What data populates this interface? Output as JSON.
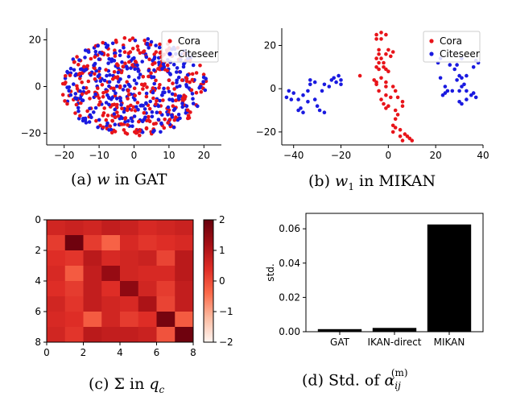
{
  "colors": {
    "cora": "#e8141a",
    "citeseer": "#1a1ae0",
    "bar": "#000000"
  },
  "captions": {
    "a": {
      "label": "(a)",
      "var": "w",
      "rest": "in GAT"
    },
    "b": {
      "label": "(b)",
      "var": "w",
      "sub": "1",
      "rest": "in MIKAN"
    },
    "c": {
      "label": "(c)",
      "var": "Σ",
      "mid": "in",
      "var2": "q",
      "sub": "c"
    },
    "d": {
      "label": "(d) Std. of",
      "var": "α",
      "sub": "ij",
      "sup": "(m)"
    }
  },
  "chart_data": [
    {
      "id": "a",
      "type": "scatter",
      "xlim": [
        -25,
        25
      ],
      "ylim": [
        -25,
        25
      ],
      "xticks": [
        "−20",
        "−10",
        "0",
        "10",
        "20"
      ],
      "xtick_vals": [
        -20,
        -10,
        0,
        10,
        20
      ],
      "yticks": [
        "−20",
        "0",
        "20"
      ],
      "ytick_vals": [
        -20,
        0,
        20
      ],
      "legend": {
        "position": "top-right",
        "entries": [
          "Cora",
          "Citeseer"
        ]
      },
      "series": [
        {
          "name": "Cora",
          "color": "#e8141a",
          "pattern": "cloud",
          "center": [
            0,
            0
          ],
          "spread": [
            21,
            21
          ],
          "n": 330,
          "seed": 7
        },
        {
          "name": "Citeseer",
          "color": "#1a1ae0",
          "pattern": "cloud",
          "center": [
            0,
            0
          ],
          "spread": [
            21,
            21
          ],
          "n": 330,
          "seed": 19
        }
      ]
    },
    {
      "id": "b",
      "type": "scatter",
      "xlim": [
        -45,
        40
      ],
      "ylim": [
        -26,
        28
      ],
      "xticks": [
        "−40",
        "−20",
        "0",
        "20",
        "40"
      ],
      "xtick_vals": [
        -40,
        -20,
        0,
        20,
        40
      ],
      "yticks": [
        "−20",
        "0",
        "20"
      ],
      "ytick_vals": [
        -20,
        0,
        20
      ],
      "legend": {
        "position": "top-right",
        "entries": [
          "Cora",
          "Citeseer"
        ]
      },
      "series": [
        {
          "name": "Cora",
          "color": "#e8141a",
          "points": [
            [
              -5,
              25
            ],
            [
              -3,
              26
            ],
            [
              -1,
              25
            ],
            [
              -5,
              23
            ],
            [
              -3,
              23
            ],
            [
              -4,
              18
            ],
            [
              -4,
              16
            ],
            [
              -5,
              14
            ],
            [
              -4,
              12
            ],
            [
              -5,
              10
            ],
            [
              -4,
              9
            ],
            [
              -3,
              14
            ],
            [
              -1,
              16
            ],
            [
              1,
              15
            ],
            [
              -2,
              10
            ],
            [
              -1,
              9
            ],
            [
              0,
              8
            ],
            [
              -3,
              5
            ],
            [
              -6,
              4
            ],
            [
              -5,
              3
            ],
            [
              -1,
              3
            ],
            [
              -5,
              2
            ],
            [
              -1,
              1
            ],
            [
              2,
              1
            ],
            [
              3,
              -1
            ],
            [
              4,
              -4
            ],
            [
              6,
              -6
            ],
            [
              6,
              -8
            ],
            [
              -2,
              -7
            ],
            [
              0,
              -8
            ],
            [
              -1,
              -9
            ],
            [
              3,
              -10
            ],
            [
              4,
              -12
            ],
            [
              3,
              -14
            ],
            [
              2,
              -17
            ],
            [
              3,
              -18
            ],
            [
              2,
              -20
            ],
            [
              5,
              -22
            ],
            [
              7,
              -21
            ],
            [
              9,
              -23
            ],
            [
              10,
              -24
            ],
            [
              6,
              -24
            ],
            [
              -3,
              -5
            ],
            [
              -1,
              -3
            ],
            [
              1,
              -4
            ],
            [
              5,
              -19
            ],
            [
              8,
              -22
            ],
            [
              -2,
              12
            ],
            [
              -12,
              6
            ],
            [
              0,
              18
            ],
            [
              2,
              17
            ],
            [
              -4,
              -1
            ]
          ]
        },
        {
          "name": "Citeseer",
          "color": "#1a1ae0",
          "points": [
            [
              -43,
              -4
            ],
            [
              -41,
              -5
            ],
            [
              -42,
              -1
            ],
            [
              -40,
              -2
            ],
            [
              -38,
              -5
            ],
            [
              -36,
              -3
            ],
            [
              -34,
              -1
            ],
            [
              -33,
              2
            ],
            [
              -33,
              4
            ],
            [
              -31,
              3
            ],
            [
              -37,
              -9
            ],
            [
              -36,
              -11
            ],
            [
              -38,
              -10
            ],
            [
              -30,
              -8
            ],
            [
              -29,
              -10
            ],
            [
              -27,
              -11
            ],
            [
              -28,
              -1
            ],
            [
              -25,
              1
            ],
            [
              -27,
              2
            ],
            [
              -22,
              3
            ],
            [
              -20,
              4
            ],
            [
              -21,
              6
            ],
            [
              -23,
              5
            ],
            [
              -24,
              4
            ],
            [
              -20,
              2
            ],
            [
              -34,
              -6
            ],
            [
              -31,
              -5
            ],
            [
              22,
              5
            ],
            [
              24,
              1
            ],
            [
              25,
              -1
            ],
            [
              23,
              -3
            ],
            [
              24,
              -2
            ],
            [
              27,
              -1
            ],
            [
              30,
              -1
            ],
            [
              31,
              1
            ],
            [
              32,
              2
            ],
            [
              29,
              4
            ],
            [
              31,
              5
            ],
            [
              33,
              6
            ],
            [
              30,
              6
            ],
            [
              33,
              -1
            ],
            [
              35,
              -3
            ],
            [
              37,
              -4
            ],
            [
              36,
              -2
            ],
            [
              36,
              10
            ],
            [
              38,
              12
            ],
            [
              37,
              13
            ],
            [
              30,
              -6
            ],
            [
              31,
              -7
            ],
            [
              21,
              12
            ],
            [
              22,
              14
            ],
            [
              26,
              11
            ],
            [
              28,
              9
            ],
            [
              29,
              11
            ],
            [
              31,
              14
            ],
            [
              33,
              -5
            ]
          ]
        }
      ]
    },
    {
      "id": "c",
      "type": "heatmap",
      "size": 8,
      "xticks": [
        "0",
        "2",
        "4",
        "6",
        "8"
      ],
      "yticks": [
        "0",
        "2",
        "4",
        "6",
        "8"
      ],
      "colorbar": {
        "min": -2,
        "max": 2,
        "ticks": [
          "2",
          "1",
          "0",
          "−1",
          "−2"
        ],
        "tick_vals": [
          2,
          1,
          0,
          -1,
          -2
        ]
      },
      "values": [
        [
          0.6,
          0.7,
          0.6,
          0.8,
          0.7,
          0.5,
          0.6,
          0.7
        ],
        [
          0.2,
          1.9,
          0.2,
          -0.3,
          0.5,
          0.3,
          0.4,
          0.5
        ],
        [
          0.4,
          0.3,
          0.9,
          0.5,
          0.6,
          0.7,
          0.1,
          0.9
        ],
        [
          0.5,
          -0.2,
          0.8,
          1.4,
          0.6,
          0.5,
          0.5,
          0.9
        ],
        [
          0.4,
          0.2,
          0.8,
          0.4,
          1.5,
          0.6,
          0.2,
          0.8
        ],
        [
          0.6,
          0.3,
          0.8,
          0.6,
          0.5,
          1.1,
          0.1,
          0.8
        ],
        [
          0.5,
          0.4,
          -0.2,
          0.6,
          0.2,
          0.4,
          1.8,
          -0.2
        ],
        [
          0.6,
          0.3,
          0.9,
          0.8,
          0.8,
          0.7,
          -0.1,
          1.9
        ]
      ]
    },
    {
      "id": "d",
      "type": "bar",
      "categories": [
        "GAT",
        "IKAN-direct",
        "MIKAN"
      ],
      "values": [
        0.0015,
        0.0022,
        0.0625
      ],
      "ylabel": "std.",
      "ylim": [
        0,
        0.069
      ],
      "yticks": [
        "0.00",
        "0.02",
        "0.04",
        "0.06"
      ],
      "ytick_vals": [
        0,
        0.02,
        0.04,
        0.06
      ]
    }
  ]
}
